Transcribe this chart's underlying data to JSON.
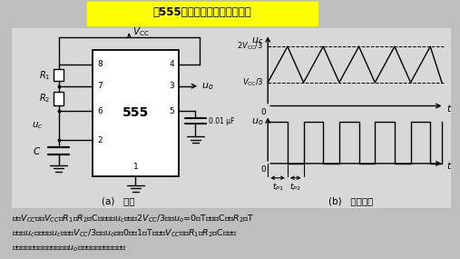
{
  "title": "由555定时器构成的多谐振荡器",
  "title_bg": "#FFFF00",
  "fig_bg": "#BEBEBE",
  "panel_bg": "#D8D8D8",
  "col": "black",
  "caption_a": "(a)   电路",
  "caption_b": "(b)   工作波形",
  "desc_line1": "接通Vₙₙ后，Vₙₙ经R₁和R₂对C充电。当uₙ上升到2Vₙₙ/3时，uₒ=0，T导通，C通过R₂和T",
  "desc_line2": "放电，uₙ下降。当uₙ下降到Vₙₙ/3时，uₒ又由0变为1，T截止，Vₙₙ又经R₁和R₂对C充电。",
  "desc_line3": "如此重复上述过程，在输出端uₒ产生了连续的矩形脉冲。",
  "lw": 1.0
}
